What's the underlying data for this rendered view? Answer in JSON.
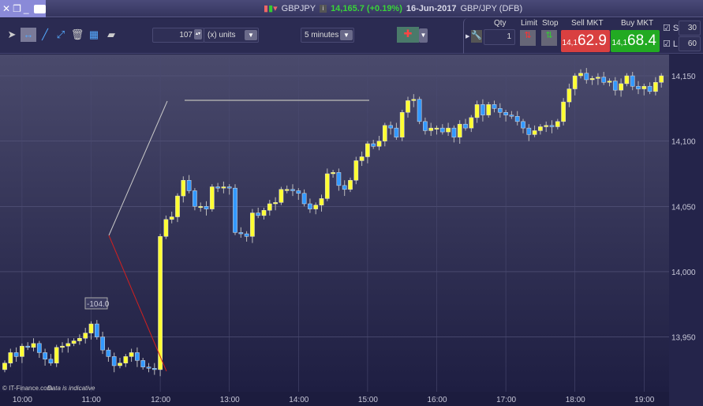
{
  "header": {
    "symbol": "GBPJPY",
    "price_change": "14,165.7 (+0.19%)",
    "date": "16-Jun-2017",
    "instrument": "GBP/JPY (DFB)"
  },
  "toolbar": {
    "quantity": "107",
    "quantity_unit": "(x) units",
    "timeframe": "5 minutes",
    "tools": [
      "pointer-icon",
      "horizontal-line-icon",
      "trend-line-icon",
      "segment-icon",
      "trash-icon",
      "indicator-icon",
      "ruler-icon"
    ]
  },
  "trade": {
    "qty_label": "Qty",
    "qty_value": "1",
    "limit_label": "Limit",
    "stop_label": "Stop",
    "sell_label": "Sell MKT",
    "buy_label": "Buy MKT",
    "sell_prefix": "14,1",
    "sell_price": "62.9",
    "buy_prefix": "14,1",
    "buy_price": "68.4",
    "s_label": "S",
    "s_value": "30",
    "l_label": "L",
    "l_value": "60",
    "sell_color": "#d94040",
    "buy_color": "#22aa22"
  },
  "chart": {
    "watermark": "© IT-Finance.com",
    "disclaimer": "Data is indicative",
    "measure_label": "-104.0",
    "up_color": "#ffff33",
    "down_color": "#3399ff"
  },
  "chart_data": {
    "type": "candlestick",
    "interval": "5 minutes",
    "ylim": [
      13915,
      14160
    ],
    "y_ticks": [
      "14,150",
      "14,100",
      "14,050",
      "14,000",
      "13,950"
    ],
    "y_tick_values": [
      14150,
      14100,
      14050,
      14000,
      13950
    ],
    "x_ticks": [
      "10:00",
      "11:00",
      "12:00",
      "13:00",
      "14:00",
      "15:00",
      "16:00",
      "17:00",
      "18:00",
      "19:00"
    ],
    "first_candle": "09:45",
    "first_open": 13925,
    "closes": [
      13930,
      13938,
      13935,
      13943,
      13942,
      13945,
      13938,
      13933,
      13930,
      13942,
      13943,
      13945,
      13947,
      13949,
      13953,
      13960,
      13950,
      13940,
      13935,
      13928,
      13930,
      13935,
      13938,
      13932,
      13927,
      13926,
      13925,
      14027,
      14040,
      14042,
      14058,
      14070,
      14062,
      14050,
      14050,
      14048,
      14065,
      14064,
      14065,
      14064,
      14030,
      14029,
      14027,
      14045,
      14043,
      14047,
      14052,
      14053,
      14063,
      14063,
      14062,
      14060,
      14052,
      14048,
      14051,
      14056,
      14075,
      14076,
      14066,
      14063,
      14070,
      14085,
      14088,
      14098,
      14096,
      14100,
      14112,
      14110,
      14103,
      14122,
      14131,
      14132,
      14115,
      14108,
      14110,
      14110,
      14107,
      14110,
      14103,
      14113,
      14110,
      14118,
      14128,
      14120,
      14128,
      14125,
      14122,
      14120,
      14119,
      14115,
      14110,
      14105,
      14108,
      14111,
      14112,
      14111,
      14115,
      14130,
      14140,
      14150,
      14152,
      14147,
      14148,
      14149,
      14145,
      14146,
      14139,
      14144,
      14150,
      14142,
      14140,
      14142,
      14138,
      14145,
      14150
    ]
  }
}
